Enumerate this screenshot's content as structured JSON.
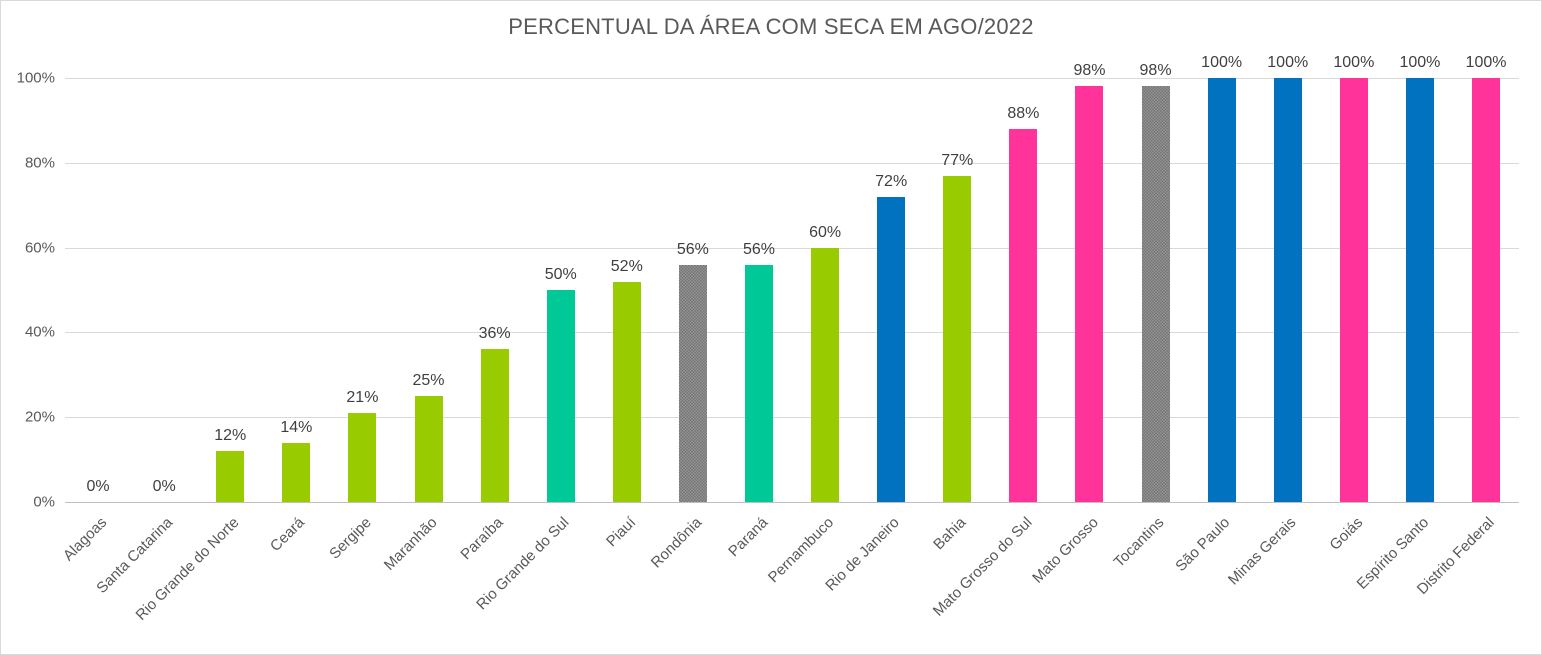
{
  "chart_data": {
    "type": "bar",
    "title": "PERCENTUAL DA ÁREA COM SECA EM AGO/2022",
    "xlabel": "",
    "ylabel": "",
    "ylim": [
      0,
      100
    ],
    "grid": true,
    "legend": false,
    "yticks": [
      {
        "label": "0%",
        "value": 0
      },
      {
        "label": "20%",
        "value": 20
      },
      {
        "label": "40%",
        "value": 40
      },
      {
        "label": "60%",
        "value": 60
      },
      {
        "label": "80%",
        "value": 80
      },
      {
        "label": "100%",
        "value": 100
      }
    ],
    "palette": {
      "green": "#99CC00",
      "teal": "#00C896",
      "blue": "#0072C0",
      "pink": "#FF3399",
      "gray": "#858585"
    },
    "categories": [
      "Alagoas",
      "Santa Catarina",
      "Rio Grande do Norte",
      "Ceará",
      "Sergipe",
      "Maranhão",
      "Paraíba",
      "Rio Grande do Sul",
      "Piauí",
      "Rondônia",
      "Paraná",
      "Pernambuco",
      "Rio de Janeiro",
      "Bahia",
      "Mato Grosso do Sul",
      "Mato Grosso",
      "Tocantins",
      "São Paulo",
      "Minas Gerais",
      "Goiás",
      "Espírito Santo",
      "Distrito Federal"
    ],
    "values": [
      0,
      0,
      12,
      14,
      21,
      25,
      36,
      50,
      52,
      56,
      56,
      60,
      72,
      77,
      88,
      98,
      98,
      100,
      100,
      100,
      100,
      100
    ],
    "value_labels": [
      "0%",
      "0%",
      "12%",
      "14%",
      "21%",
      "25%",
      "36%",
      "50%",
      "52%",
      "56%",
      "56%",
      "60%",
      "72%",
      "77%",
      "88%",
      "98%",
      "98%",
      "100%",
      "100%",
      "100%",
      "100%",
      "100%"
    ],
    "bar_colors": [
      "green",
      "green",
      "green",
      "green",
      "green",
      "green",
      "green",
      "teal",
      "green",
      "gray",
      "teal",
      "green",
      "blue",
      "green",
      "pink",
      "pink",
      "gray",
      "blue",
      "blue",
      "pink",
      "blue",
      "pink"
    ]
  }
}
